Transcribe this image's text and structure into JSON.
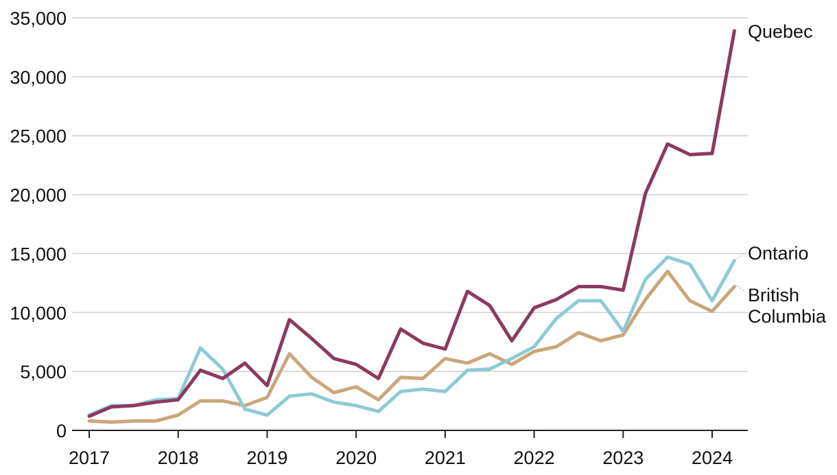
{
  "chart_data": {
    "type": "line",
    "ylim": [
      0,
      35000
    ],
    "xlim": [
      2017,
      2024.4
    ],
    "y_ticks": [
      0,
      5000,
      10000,
      15000,
      20000,
      25000,
      30000,
      35000
    ],
    "y_tick_labels": [
      "0",
      "5,000",
      "10,000",
      "15,000",
      "20,000",
      "25,000",
      "30,000",
      "35,000"
    ],
    "x_ticks": [
      2017,
      2018,
      2019,
      2020,
      2021,
      2022,
      2023,
      2024
    ],
    "x_tick_labels": [
      "2017",
      "2018",
      "2019",
      "2020",
      "2021",
      "2022",
      "2023",
      "2024"
    ],
    "grid": "horizontal",
    "legend": "direct labels at right end of lines",
    "x": [
      2017,
      2017.25,
      2017.5,
      2017.75,
      2018,
      2018.25,
      2018.5,
      2018.75,
      2019,
      2019.25,
      2019.5,
      2019.75,
      2020,
      2020.25,
      2020.5,
      2020.75,
      2021,
      2021.25,
      2021.5,
      2021.75,
      2022,
      2022.25,
      2022.5,
      2022.75,
      2023,
      2023.25,
      2023.5,
      2023.75,
      2024,
      2024.25
    ],
    "series": [
      {
        "name": "Quebec",
        "color": "#8b3a5f",
        "values": [
          1200,
          2000,
          2100,
          2400,
          2600,
          5100,
          4400,
          5700,
          3800,
          9400,
          7800,
          6100,
          5600,
          4400,
          8600,
          7400,
          6900,
          11800,
          10600,
          7600,
          10400,
          11100,
          12200,
          12200,
          11900,
          20100,
          24300,
          23400,
          23500,
          33900
        ]
      },
      {
        "name": "Ontario",
        "color": "#8ecad3",
        "values": [
          1300,
          2100,
          2100,
          2600,
          2700,
          7000,
          5200,
          1800,
          1300,
          2900,
          3100,
          2400,
          2100,
          1600,
          3300,
          3500,
          3300,
          5100,
          5200,
          6100,
          7100,
          9500,
          11000,
          11000,
          8400,
          12800,
          14700,
          14100,
          11000,
          14400
        ]
      },
      {
        "name": "British\nColumbia",
        "color": "#c9a67c",
        "values": [
          800,
          700,
          800,
          800,
          1300,
          2500,
          2500,
          2100,
          2800,
          6500,
          4500,
          3200,
          3700,
          2600,
          4500,
          4400,
          6100,
          5700,
          6500,
          5600,
          6700,
          7100,
          8300,
          7600,
          8100,
          11100,
          13500,
          11000,
          10100,
          12200
        ]
      }
    ]
  }
}
